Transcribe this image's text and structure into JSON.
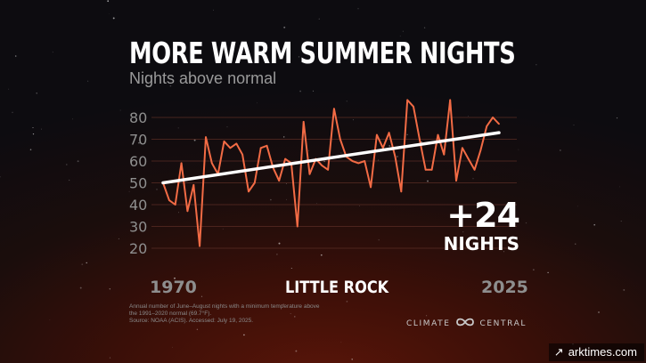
{
  "header": {
    "title": "MORE WARM SUMMER NIGHTS",
    "subtitle": "Nights above normal"
  },
  "location": "LITTLE ROCK",
  "callout": {
    "value": "+24",
    "unit": "NIGHTS"
  },
  "footnote": {
    "line1": "Annual number of June–August nights with a minimum temperature above",
    "line2": "the 1991–2020 normal (69.7°F).",
    "line3": "Source: NOAA (ACIS). Accessed: July 19, 2025."
  },
  "brand": {
    "left": "CLIMATE",
    "right": "CENTRAL",
    "icon": "infinity-loop-icon"
  },
  "credit": {
    "text": "arktimes.com",
    "icon": "arrow-up-right-icon"
  },
  "colors": {
    "line": "#f26b45",
    "trend": "#ffffff",
    "grid": "#5a2c24",
    "background": "#1b0d0c"
  },
  "chart_data": {
    "type": "line",
    "x_start_label": "1970",
    "x_end_label": "2025",
    "ylim": [
      15,
      85
    ],
    "yticks": [
      20,
      30,
      40,
      50,
      60,
      70,
      80
    ],
    "grid": true,
    "series": [
      {
        "x": [
          1970,
          1971,
          1972,
          1973,
          1974,
          1975,
          1976,
          1977,
          1978,
          1979,
          1980,
          1981,
          1982,
          1983,
          1984,
          1985,
          1986,
          1987,
          1988,
          1989,
          1990,
          1991,
          1992,
          1993,
          1994,
          1995,
          1996,
          1997,
          1998,
          1999,
          2000,
          2001,
          2002,
          2003,
          2004,
          2005,
          2006,
          2007,
          2008,
          2009,
          2010,
          2011,
          2012,
          2013,
          2014,
          2015,
          2016,
          2017,
          2018,
          2019,
          2020,
          2021,
          2022,
          2023,
          2024,
          2025
        ],
        "values": [
          50,
          42,
          40,
          59,
          37,
          49,
          21,
          71,
          59,
          54,
          69,
          66,
          68,
          63,
          46,
          50,
          66,
          67,
          57,
          51,
          61,
          59,
          30,
          78,
          54,
          61,
          58,
          56,
          84,
          70,
          62,
          60,
          59,
          60,
          48,
          72,
          66,
          73,
          62,
          46,
          88,
          85,
          70,
          56,
          56,
          72,
          63,
          88,
          51,
          66,
          61,
          56,
          65,
          76,
          80,
          77
        ]
      }
    ],
    "trend": {
      "x": [
        1970,
        2025
      ],
      "values": [
        50,
        73
      ]
    }
  }
}
